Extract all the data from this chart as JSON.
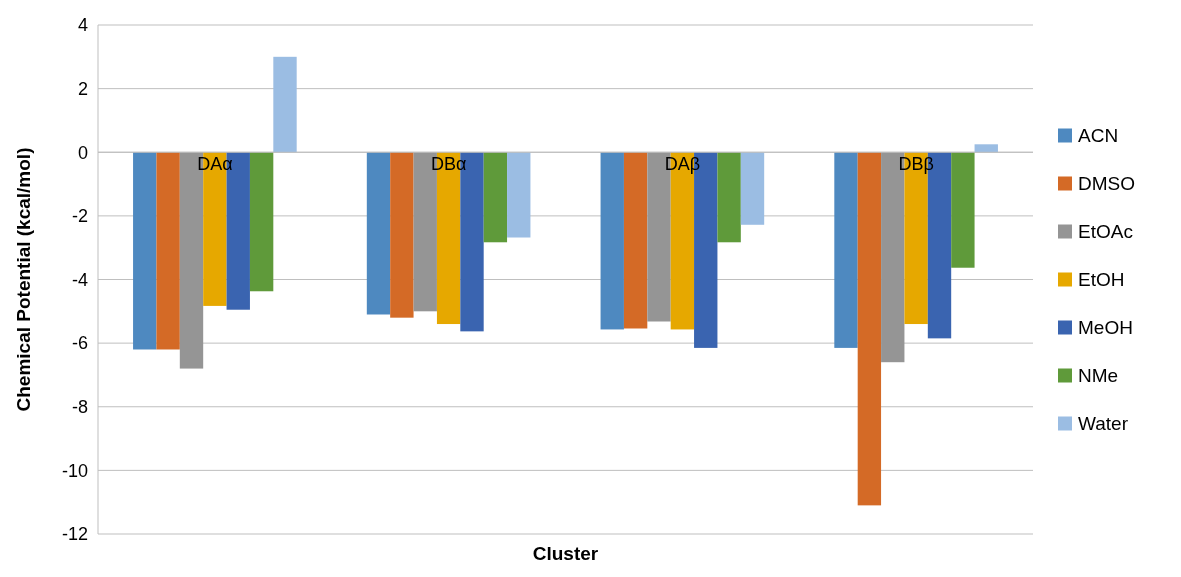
{
  "chart_data": {
    "type": "bar",
    "xlabel": "Cluster",
    "ylabel": "Chemical Potential (kcal/mol)",
    "categories": [
      "DAα",
      "DBα",
      "DAβ",
      "DBβ"
    ],
    "series": [
      {
        "name": "ACN",
        "color": "#4e89c0",
        "values": [
          -6.2,
          -5.1,
          -5.57,
          -6.15
        ]
      },
      {
        "name": "DMSO",
        "color": "#d46a26",
        "values": [
          -6.2,
          -5.2,
          -5.54,
          -11.1
        ]
      },
      {
        "name": "EtOAc",
        "color": "#959595",
        "values": [
          -6.8,
          -5.0,
          -5.32,
          -6.6
        ]
      },
      {
        "name": "EtOH",
        "color": "#e6a800",
        "values": [
          -4.83,
          -5.4,
          -5.57,
          -5.4
        ]
      },
      {
        "name": "MeOH",
        "color": "#3a64b0",
        "values": [
          -4.95,
          -5.63,
          -6.15,
          -5.85
        ]
      },
      {
        "name": "NMe",
        "color": "#5f9a3a",
        "values": [
          -4.37,
          -2.83,
          -2.83,
          -3.63
        ]
      },
      {
        "name": "Water",
        "color": "#9bbde3",
        "values": [
          3.0,
          -2.68,
          -2.28,
          0.25
        ]
      }
    ],
    "ylim": [
      -12,
      4
    ],
    "yticks": [
      -12,
      -10,
      -8,
      -6,
      -4,
      -2,
      0,
      2,
      4
    ],
    "grid": "y",
    "legend": "right"
  }
}
